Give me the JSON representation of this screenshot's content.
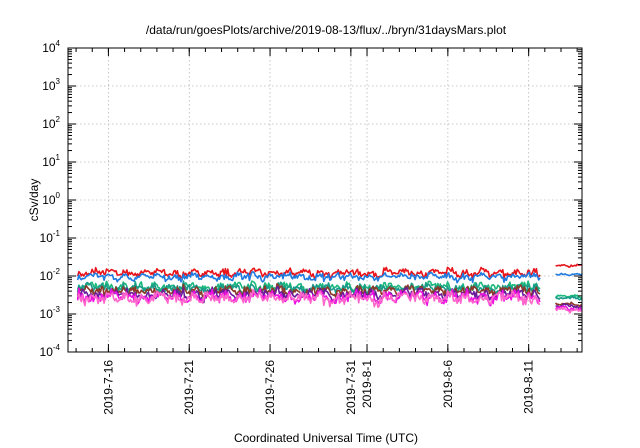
{
  "chart_data": {
    "type": "line",
    "title": "/data/run/goesPlots/archive/2019-08-13/flux/../bryn/31daysMars.plot",
    "xlabel": "Coordinated Universal Time (UTC)",
    "ylabel": "cSv/day",
    "yscale": "log",
    "ylim": [
      0.0001,
      10000
    ],
    "xlim": [
      13.5,
      45.3
    ],
    "x_unit": "days since 2019-07-00",
    "grid": true,
    "legend": "none",
    "y_ticks": [
      {
        "value": 0.0001,
        "base": "10",
        "exp": "-4"
      },
      {
        "value": 0.001,
        "base": "10",
        "exp": "-3"
      },
      {
        "value": 0.01,
        "base": "10",
        "exp": "-2"
      },
      {
        "value": 0.1,
        "base": "10",
        "exp": "-1"
      },
      {
        "value": 1,
        "base": "10",
        "exp": "0"
      },
      {
        "value": 10,
        "base": "10",
        "exp": "1"
      },
      {
        "value": 100,
        "base": "10",
        "exp": "2"
      },
      {
        "value": 1000,
        "base": "10",
        "exp": "3"
      },
      {
        "value": 10000,
        "base": "10",
        "exp": "4"
      }
    ],
    "x_ticks": [
      {
        "value": 16,
        "label": "2019-7-16"
      },
      {
        "value": 21,
        "label": "2019-7-21"
      },
      {
        "value": 26,
        "label": "2019-7-26"
      },
      {
        "value": 31,
        "label": "2019-7-31"
      },
      {
        "value": 32,
        "label": "2019-8-1"
      },
      {
        "value": 37,
        "label": "2019-8-6"
      },
      {
        "value": 42,
        "label": "2019-8-11"
      }
    ],
    "data_gap": [
      42.7,
      43.6
    ],
    "series": [
      {
        "name": "red",
        "color": "#e8141c",
        "level_before": 0.012,
        "level_after": 0.019,
        "amplitude": 0.24
      },
      {
        "name": "blue",
        "color": "#1f7ae0",
        "level_before": 0.0095,
        "level_after": 0.011,
        "amplitude": 0.22
      },
      {
        "name": "green",
        "color": "#1cb87d",
        "level_before": 0.0052,
        "level_after": 0.0029,
        "amplitude": 0.26
      },
      {
        "name": "teal",
        "color": "#1a9a8a",
        "level_before": 0.0047,
        "level_after": 0.0026,
        "amplitude": 0.26
      },
      {
        "name": "brown",
        "color": "#8b3a2a",
        "level_before": 0.004,
        "level_after": 0.0018,
        "amplitude": 0.28
      },
      {
        "name": "purple",
        "color": "#6a1b9a",
        "level_before": 0.0033,
        "level_after": 0.0016,
        "amplitude": 0.3
      },
      {
        "name": "magenta",
        "color": "#ee10e0",
        "level_before": 0.0028,
        "level_after": 0.0014,
        "amplitude": 0.34
      },
      {
        "name": "pink",
        "color": "#ff66cc",
        "level_before": 0.0026,
        "level_after": 0.0013,
        "amplitude": 0.34
      }
    ]
  }
}
